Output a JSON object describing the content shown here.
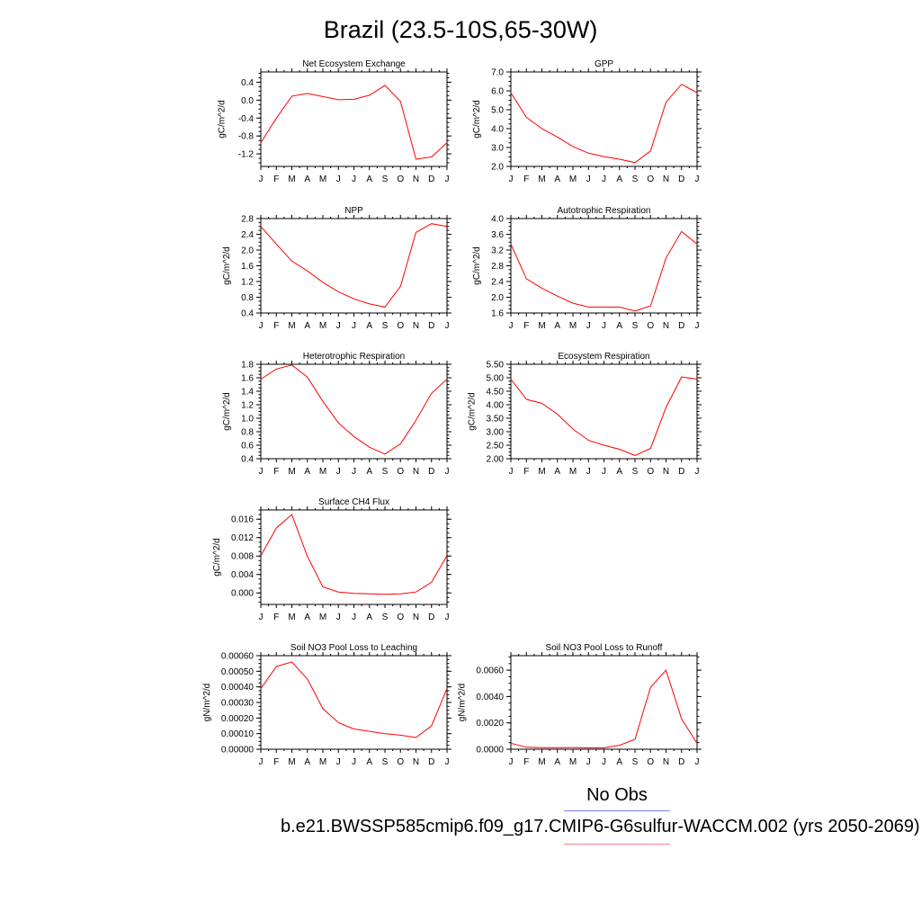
{
  "title": "Brazil (23.5-10S,65-30W)",
  "months": [
    "J",
    "F",
    "M",
    "A",
    "M",
    "J",
    "J",
    "A",
    "S",
    "O",
    "N",
    "D",
    "J"
  ],
  "legend": {
    "obs_label": "No Obs",
    "case_label": "b.e21.BWSSP585cmip6.f09_g17.CMIP6-G6sulfur-WACCM.002 (yrs 2050-2069)",
    "obs_color": "#7b7bff",
    "case_color": "#ff8080"
  },
  "line_color": "#ff0000",
  "chart_data": [
    {
      "type": "line",
      "title": "Net Ecosystem Exchange",
      "ylabel": "gC/m^2/d",
      "ylim": [
        -1.48,
        0.63
      ],
      "yticks": [
        -1.2,
        -0.8,
        -0.4,
        0.0,
        0.4
      ],
      "yticklabels": [
        "-1.2",
        "-0.8",
        "-0.4",
        "0.0",
        "0.4"
      ],
      "series": [
        {
          "values": [
            -0.95,
            -0.4,
            0.09,
            0.15,
            0.08,
            0.01,
            0.02,
            0.11,
            0.33,
            -0.03,
            -1.32,
            -1.27,
            -0.95
          ]
        }
      ]
    },
    {
      "type": "line",
      "title": "GPP",
      "ylabel": "gC/m^2/d",
      "ylim": [
        2.0,
        7.0
      ],
      "yticks": [
        2.0,
        3.0,
        4.0,
        5.0,
        6.0,
        7.0
      ],
      "yticklabels": [
        "2.0",
        "3.0",
        "4.0",
        "5.0",
        "6.0",
        "7.0"
      ],
      "series": [
        {
          "values": [
            5.9,
            4.6,
            4.0,
            3.55,
            3.05,
            2.7,
            2.52,
            2.38,
            2.2,
            2.82,
            5.4,
            6.35,
            5.9
          ]
        }
      ]
    },
    {
      "type": "line",
      "title": "NPP",
      "ylabel": "gC/m^2/d",
      "ylim": [
        0.4,
        2.8
      ],
      "yticks": [
        0.4,
        0.8,
        1.2,
        1.6,
        2.0,
        2.4,
        2.8
      ],
      "yticklabels": [
        "0.4",
        "0.8",
        "1.2",
        "1.6",
        "2.0",
        "2.4",
        "2.8"
      ],
      "series": [
        {
          "values": [
            2.6,
            2.15,
            1.72,
            1.47,
            1.18,
            0.94,
            0.76,
            0.63,
            0.55,
            1.08,
            2.45,
            2.67,
            2.6
          ]
        }
      ]
    },
    {
      "type": "line",
      "title": "Autotrophic Respiration",
      "ylabel": "gC/m^2/d",
      "ylim": [
        1.6,
        4.0
      ],
      "yticks": [
        1.6,
        2.0,
        2.4,
        2.8,
        3.2,
        3.6,
        4.0
      ],
      "yticklabels": [
        "1.6",
        "2.0",
        "2.4",
        "2.8",
        "3.2",
        "3.6",
        "4.0"
      ],
      "series": [
        {
          "values": [
            3.35,
            2.47,
            2.23,
            2.03,
            1.85,
            1.75,
            1.75,
            1.75,
            1.65,
            1.78,
            3.0,
            3.67,
            3.35
          ]
        }
      ]
    },
    {
      "type": "line",
      "title": "Heterotrophic Respiration",
      "ylabel": "gC/m^2/d",
      "ylim": [
        0.4,
        1.8
      ],
      "yticks": [
        0.4,
        0.6,
        0.8,
        1.0,
        1.2,
        1.4,
        1.6,
        1.8
      ],
      "yticklabels": [
        "0.4",
        "0.6",
        "0.8",
        "1.0",
        "1.2",
        "1.4",
        "1.6",
        "1.8"
      ],
      "series": [
        {
          "values": [
            1.58,
            1.73,
            1.79,
            1.61,
            1.25,
            0.93,
            0.73,
            0.57,
            0.47,
            0.62,
            0.97,
            1.37,
            1.58
          ]
        }
      ]
    },
    {
      "type": "line",
      "title": "Ecosystem Respiration",
      "ylabel": "gC/m^2/d",
      "ylim": [
        2.0,
        5.5
      ],
      "yticks": [
        2.0,
        2.5,
        3.0,
        3.5,
        4.0,
        4.5,
        5.0,
        5.5
      ],
      "yticklabels": [
        "2.00",
        "2.50",
        "3.00",
        "3.50",
        "4.00",
        "4.50",
        "5.00",
        "5.50"
      ],
      "series": [
        {
          "values": [
            4.95,
            4.2,
            4.05,
            3.65,
            3.1,
            2.68,
            2.5,
            2.35,
            2.12,
            2.38,
            3.9,
            5.03,
            4.95
          ]
        }
      ]
    },
    {
      "type": "line",
      "title": "Surface CH4 Flux",
      "ylabel": "gC/m^2/d",
      "ylim": [
        -0.0025,
        0.018
      ],
      "yticks": [
        0.0,
        0.004,
        0.008,
        0.012,
        0.016
      ],
      "yticklabels": [
        "0.000",
        "0.004",
        "0.008",
        "0.012",
        "0.016"
      ],
      "series": [
        {
          "values": [
            0.0081,
            0.0141,
            0.017,
            0.0079,
            0.0013,
            0.0002,
            -0.0001,
            -0.0002,
            -0.0003,
            -0.0002,
            0.0002,
            0.0023,
            0.0081
          ]
        }
      ]
    },
    {
      "type": "line",
      "title": "Soil NO3 Pool Loss to Leaching",
      "ylabel": "gN/m^2/d",
      "ylim": [
        0.0,
        0.0006
      ],
      "yticks": [
        0.0,
        0.0001,
        0.0002,
        0.0003,
        0.0004,
        0.0005,
        0.0006
      ],
      "yticklabels": [
        "0.00000",
        "0.00010",
        "0.00020",
        "0.00030",
        "0.00040",
        "0.00050",
        "0.00060"
      ],
      "series": [
        {
          "values": [
            0.00039,
            0.00053,
            0.00056,
            0.00045,
            0.00026,
            0.00017,
            0.00013,
            0.000115,
            0.0001,
            9e-05,
            7.5e-05,
            0.00015,
            0.00039
          ]
        }
      ]
    },
    {
      "type": "line",
      "title": "Soil NO3 Pool Loss to Runoff",
      "ylabel": "gN/m^2/d",
      "ylim": [
        0.0,
        0.0071
      ],
      "yticks": [
        0.0,
        0.002,
        0.004,
        0.006
      ],
      "yticklabels": [
        "0.0000",
        "0.0020",
        "0.0040",
        "0.0060"
      ],
      "series": [
        {
          "values": [
            0.00045,
            0.00015,
            0.00012,
            0.00012,
            0.00013,
            0.0001,
            0.0001,
            0.0003,
            0.00075,
            0.0047,
            0.006,
            0.0023,
            0.00045
          ]
        }
      ]
    }
  ]
}
